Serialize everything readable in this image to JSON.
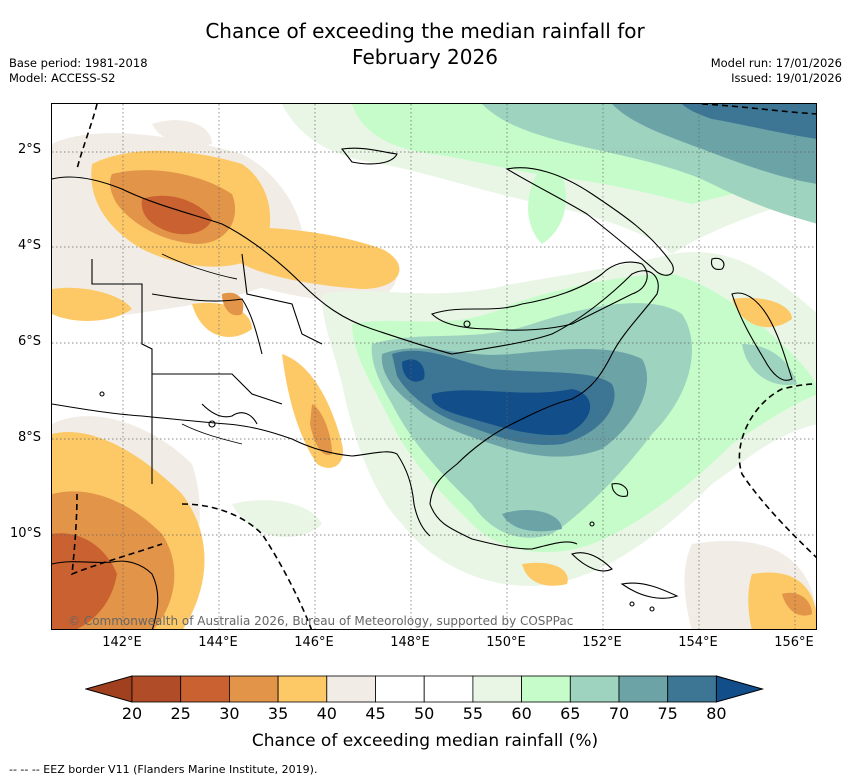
{
  "title": {
    "line1": "Chance of exceeding the median rainfall for",
    "line2": "February 2026"
  },
  "meta": {
    "base_period": "Base period: 1981-2018",
    "model": "Model: ACCESS-S2",
    "model_run": "Model run: 17/01/2026",
    "issued": "Issued: 19/01/2026"
  },
  "map": {
    "lat_labels": [
      "2°S",
      "4°S",
      "6°S",
      "8°S",
      "10°S"
    ],
    "lon_labels": [
      "142°E",
      "144°E",
      "146°E",
      "148°E",
      "150°E",
      "152°E",
      "154°E",
      "156°E"
    ],
    "copyright": "© Commonwealth of Australia 2026, Bureau of Meteorology, supported by COSPPac"
  },
  "colorbar": {
    "ticks": [
      "20",
      "25",
      "30",
      "35",
      "40",
      "45",
      "50",
      "55",
      "60",
      "65",
      "70",
      "75",
      "80"
    ],
    "colors": [
      "#a1401f",
      "#b04c27",
      "#c96130",
      "#e29448",
      "#fdc967",
      "#f1ede6",
      "#ffffff",
      "#ffffff",
      "#e9f6e6",
      "#c6fcc9",
      "#9dd3bf",
      "#6ca3a7",
      "#3d7694",
      "#114e8a"
    ],
    "label": "Chance of exceeding median rainfall (%)"
  },
  "footer": {
    "eez_note": "--  --  -- EEZ border V11 (Flanders Marine Institute, 2019)."
  }
}
